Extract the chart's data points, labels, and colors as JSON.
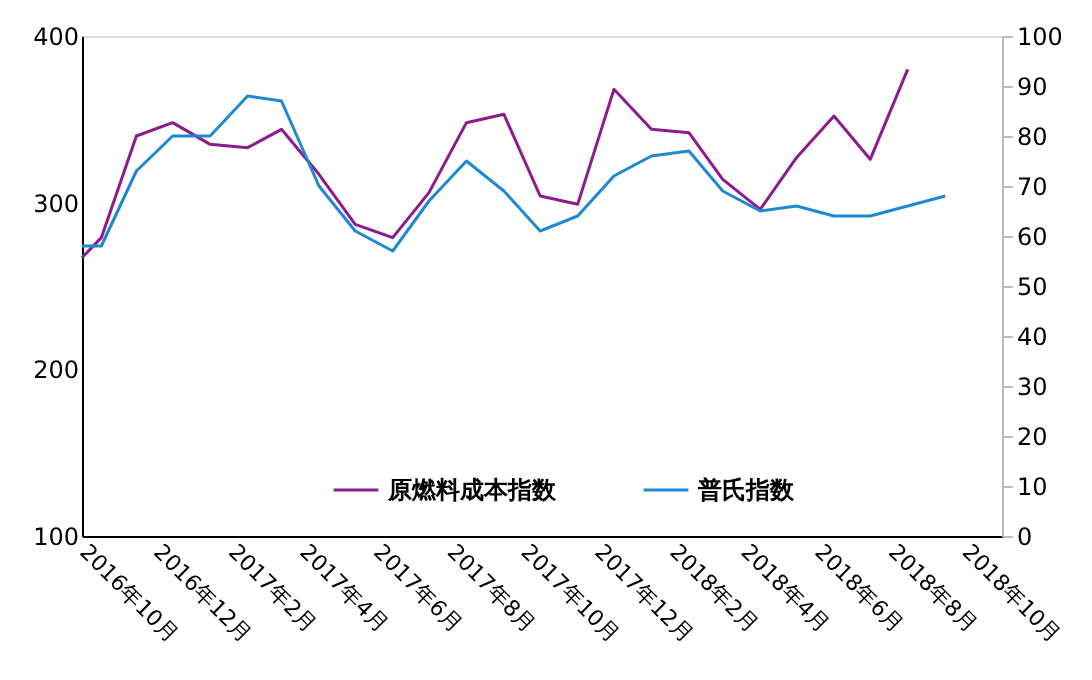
{
  "chart_data": {
    "type": "line",
    "x": [
      "2016-10-01",
      "2016-10-17",
      "2016-11-15",
      "2016-12-15",
      "2017-01-15",
      "2017-02-15",
      "2017-03-15",
      "2017-04-15",
      "2017-05-15",
      "2017-06-15",
      "2017-07-15",
      "2017-08-15",
      "2017-09-15",
      "2017-10-15",
      "2017-11-15",
      "2017-12-15",
      "2018-01-15",
      "2018-02-15",
      "2018-03-15",
      "2018-04-15",
      "2018-05-15",
      "2018-06-15",
      "2018-07-15",
      "2018-08-15",
      "2018-09-15"
    ],
    "series": [
      {
        "name": "原燃料成本指数",
        "color": "#8e1b8e",
        "values": [
          267,
          279,
          340,
          348,
          335,
          333,
          344,
          317,
          287,
          279,
          306,
          348,
          353,
          304,
          299,
          368,
          344,
          342,
          314,
          296,
          327,
          352,
          326,
          380,
          null
        ]
      },
      {
        "name": "普氏指数",
        "color": "#1f88d2",
        "axis": "y2",
        "values": [
          58,
          58,
          73,
          80,
          80,
          88,
          87,
          70,
          61,
          57,
          67,
          75,
          69,
          61,
          64,
          72,
          76,
          77,
          69,
          65,
          66,
          64,
          64,
          66,
          68
        ]
      }
    ],
    "xlim": [
      "2016-10-01",
      "2018-11-01"
    ],
    "xticks": [
      {
        "value": "2016-10-01",
        "label": "2016年10月"
      },
      {
        "value": "2016-12-01",
        "label": "2016年12月"
      },
      {
        "value": "2017-02-01",
        "label": "2017年2月"
      },
      {
        "value": "2017-04-01",
        "label": "2017年4月"
      },
      {
        "value": "2017-06-01",
        "label": "2017年6月"
      },
      {
        "value": "2017-08-01",
        "label": "2017年8月"
      },
      {
        "value": "2017-10-01",
        "label": "2017年10月"
      },
      {
        "value": "2017-12-01",
        "label": "2017年12月"
      },
      {
        "value": "2018-02-01",
        "label": "2018年2月"
      },
      {
        "value": "2018-04-01",
        "label": "2018年4月"
      },
      {
        "value": "2018-06-01",
        "label": "2018年6月"
      },
      {
        "value": "2018-08-01",
        "label": "2018年8月"
      },
      {
        "value": "2018-10-01",
        "label": "2018年10月"
      }
    ],
    "ylim": [
      100,
      400
    ],
    "yticks": [
      100,
      200,
      300,
      400
    ],
    "y2lim": [
      0,
      100
    ],
    "y2ticks": [
      0,
      10,
      20,
      30,
      40,
      50,
      60,
      70,
      80,
      90,
      100
    ],
    "grid": false,
    "legend": "bottom",
    "marker": "none",
    "line_style": "solid"
  }
}
